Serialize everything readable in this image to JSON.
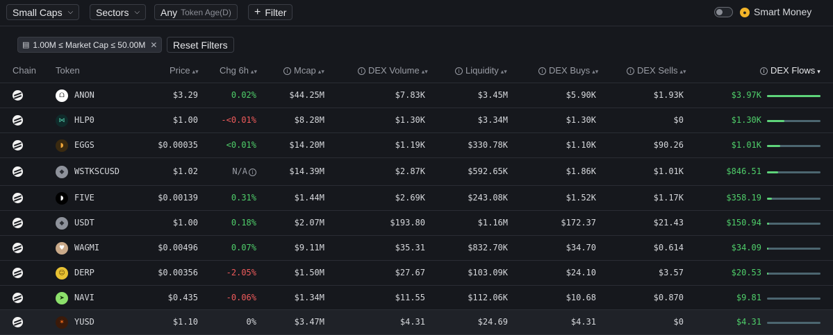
{
  "toolbar": {
    "caps_label": "Small Caps",
    "sectors_label": "Sectors",
    "age_value": "Any",
    "age_label": "Token Age(D)",
    "filter_label": "Filter",
    "smart_money_label": "Smart Money"
  },
  "filters": {
    "active_chip": "1.00M ≤ Market Cap ≤ 50.00M",
    "reset_label": "Reset Filters"
  },
  "columns": {
    "chain": "Chain",
    "token": "Token",
    "price": "Price",
    "chg": "Chg 6h",
    "mcap": "Mcap",
    "volume": "DEX Volume",
    "liquidity": "Liquidity",
    "buys": "DEX Buys",
    "sells": "DEX Sells",
    "flows": "DEX Flows"
  },
  "icon_colors": {
    "positive": "#4fcf6a",
    "negative": "#ef5b5b",
    "flow_bar": "#5ed47a",
    "flow_track": "#4c6670"
  },
  "rows": [
    {
      "token": "ANON",
      "icon": "anon-icon",
      "price": "$3.29",
      "chg": "0.02%",
      "chg_dir": "pos",
      "mcap": "$44.25M",
      "volume": "$7.83K",
      "liquidity": "$3.45M",
      "buys": "$5.90K",
      "sells": "$1.93K",
      "flows": "$3.97K",
      "flow_fraction": 1.0
    },
    {
      "token": "HLP0",
      "icon": "hlp0-icon",
      "price": "$1.00",
      "chg": "-<0.01%",
      "chg_dir": "neg",
      "mcap": "$8.28M",
      "volume": "$1.30K",
      "liquidity": "$3.34M",
      "buys": "$1.30K",
      "sells": "$0",
      "flows": "$1.30K",
      "flow_fraction": 0.33
    },
    {
      "token": "EGGS",
      "icon": "eggs-icon",
      "price": "$0.00035",
      "chg": "<0.01%",
      "chg_dir": "pos",
      "mcap": "$14.20M",
      "volume": "$1.19K",
      "liquidity": "$330.78K",
      "buys": "$1.10K",
      "sells": "$90.26",
      "flows": "$1.01K",
      "flow_fraction": 0.25
    },
    {
      "token": "WSTKSCUSD",
      "icon": "wstkscusd-icon",
      "price": "$1.02",
      "chg": "N/A",
      "chg_dir": "na",
      "mcap": "$14.39M",
      "volume": "$2.87K",
      "liquidity": "$592.65K",
      "buys": "$1.86K",
      "sells": "$1.01K",
      "flows": "$846.51",
      "flow_fraction": 0.21
    },
    {
      "token": "FIVE",
      "icon": "five-icon",
      "price": "$0.00139",
      "chg": "0.31%",
      "chg_dir": "pos",
      "mcap": "$1.44M",
      "volume": "$2.69K",
      "liquidity": "$243.08K",
      "buys": "$1.52K",
      "sells": "$1.17K",
      "flows": "$358.19",
      "flow_fraction": 0.09
    },
    {
      "token": "USDT",
      "icon": "usdt-icon",
      "price": "$1.00",
      "chg": "0.18%",
      "chg_dir": "pos",
      "mcap": "$2.07M",
      "volume": "$193.80",
      "liquidity": "$1.16M",
      "buys": "$172.37",
      "sells": "$21.43",
      "flows": "$150.94",
      "flow_fraction": 0.04
    },
    {
      "token": "WAGMI",
      "icon": "wagmi-icon",
      "price": "$0.00496",
      "chg": "0.07%",
      "chg_dir": "pos",
      "mcap": "$9.11M",
      "volume": "$35.31",
      "liquidity": "$832.70K",
      "buys": "$34.70",
      "sells": "$0.614",
      "flows": "$34.09",
      "flow_fraction": 0.01
    },
    {
      "token": "DERP",
      "icon": "derp-icon",
      "price": "$0.00356",
      "chg": "-2.05%",
      "chg_dir": "neg",
      "mcap": "$1.50M",
      "volume": "$27.67",
      "liquidity": "$103.09K",
      "buys": "$24.10",
      "sells": "$3.57",
      "flows": "$20.53",
      "flow_fraction": 0.005
    },
    {
      "token": "NAVI",
      "icon": "navi-icon",
      "price": "$0.435",
      "chg": "-0.06%",
      "chg_dir": "neg",
      "mcap": "$1.34M",
      "volume": "$11.55",
      "liquidity": "$112.06K",
      "buys": "$10.68",
      "sells": "$0.870",
      "flows": "$9.81",
      "flow_fraction": 0.0
    },
    {
      "token": "YUSD",
      "icon": "yusd-icon",
      "price": "$1.10",
      "chg": "0%",
      "chg_dir": "flat",
      "mcap": "$3.47M",
      "volume": "$4.31",
      "liquidity": "$24.69",
      "buys": "$4.31",
      "sells": "$0",
      "flows": "$4.31",
      "flow_fraction": 0.0
    }
  ]
}
